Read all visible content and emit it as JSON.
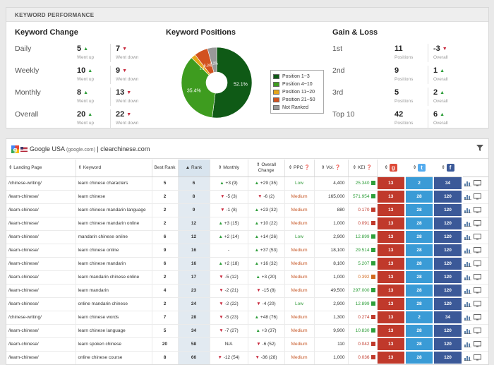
{
  "panel_title": "KEYWORD PERFORMANCE",
  "keyword_change": {
    "title": "Keyword Change",
    "rows": [
      {
        "label": "Daily",
        "up": "5",
        "down": "7",
        "up_sub": "Went up",
        "down_sub": "Went down"
      },
      {
        "label": "Weekly",
        "up": "10",
        "down": "9",
        "up_sub": "Went up",
        "down_sub": "Went down"
      },
      {
        "label": "Monthly",
        "up": "8",
        "down": "13",
        "up_sub": "Went up",
        "down_sub": "Went down"
      },
      {
        "label": "Overall",
        "up": "20",
        "down": "22",
        "up_sub": "Went up",
        "down_sub": "Went down"
      }
    ]
  },
  "keyword_positions": {
    "title": "Keyword Positions",
    "chart_data": {
      "type": "pie",
      "title": "Keyword Positions",
      "slices": [
        {
          "name": "Position 1~3",
          "value": 52.1,
          "label": "52.1%",
          "color": "#0f5a16"
        },
        {
          "name": "Position 4~10",
          "value": 35.4,
          "label": "35.4%",
          "color": "#3e9c1f"
        },
        {
          "name": "Position 11~20",
          "value": 2.1,
          "label": "2.1%",
          "color": "#e6a61a"
        },
        {
          "name": "Position 21~50",
          "value": 6.3,
          "label": "6.3%",
          "color": "#d2521f"
        },
        {
          "name": "Not Ranked",
          "value": 4.2,
          "label": "4.2%",
          "color": "#999999"
        }
      ],
      "legend_position": "right"
    }
  },
  "gain_loss": {
    "title": "Gain & Loss",
    "rows": [
      {
        "label": "1st",
        "positions": "11",
        "overall": "-3",
        "dir": "down",
        "pos_sub": "Positions",
        "ov_sub": "Overall"
      },
      {
        "label": "2nd",
        "positions": "9",
        "overall": "1",
        "dir": "up",
        "pos_sub": "Positions",
        "ov_sub": "Overall"
      },
      {
        "label": "3rd",
        "positions": "5",
        "overall": "2",
        "dir": "up",
        "pos_sub": "Positions",
        "ov_sub": "Overall"
      },
      {
        "label": "Top 10",
        "positions": "42",
        "overall": "6",
        "dir": "up",
        "pos_sub": "Positions",
        "ov_sub": "Overall"
      }
    ]
  },
  "toolbar": {
    "engine": "Google USA",
    "engine_domain": "(google.com)",
    "separator": "|",
    "site": "clearchinese.com"
  },
  "table": {
    "headers": {
      "landing": "Landing Page",
      "keyword": "Keyword",
      "best_rank": "Best Rank",
      "rank": "Rank",
      "monthly": "Monthly",
      "overall": "Overall Change",
      "ppc": "PPC",
      "vol": "Vol.",
      "kei": "KEI"
    },
    "rows": [
      {
        "landing": "/chinese-writing/",
        "keyword": "learn chinese characters",
        "best": "5",
        "rank": "6",
        "m_dir": "up",
        "monthly": "+3 (9)",
        "o_dir": "up",
        "overall": "+29 (35)",
        "ppc": "Low",
        "vol": "4,400",
        "kei": "25.340",
        "kei_c": "#2e9e3a",
        "g": "13",
        "t": "2",
        "f": "34"
      },
      {
        "landing": "/learn-chinese/",
        "keyword": "learn chinese",
        "best": "2",
        "rank": "8",
        "m_dir": "down",
        "monthly": "-5 (3)",
        "o_dir": "down",
        "overall": "-6 (2)",
        "ppc": "Medium",
        "vol": "165,000",
        "kei": "571.954",
        "kei_c": "#2e9e3a",
        "g": "13",
        "t": "28",
        "f": "120"
      },
      {
        "landing": "/learn-chinese/",
        "keyword": "learn chinese mandarin language",
        "best": "2",
        "rank": "9",
        "m_dir": "down",
        "monthly": "-1 (8)",
        "o_dir": "up",
        "overall": "+23 (32)",
        "ppc": "Medium",
        "vol": "880",
        "kei": "0.170",
        "kei_c": "#c0392b",
        "g": "13",
        "t": "28",
        "f": "120"
      },
      {
        "landing": "/learn-chinese/",
        "keyword": "learn chinese mandarin online",
        "best": "2",
        "rank": "12",
        "m_dir": "up",
        "monthly": "+3 (15)",
        "o_dir": "up",
        "overall": "+10 (22)",
        "ppc": "Medium",
        "vol": "1,000",
        "kei": "0.091",
        "kei_c": "#c0392b",
        "g": "13",
        "t": "28",
        "f": "120"
      },
      {
        "landing": "/learn-chinese/",
        "keyword": "mandarin chinese online",
        "best": "6",
        "rank": "12",
        "m_dir": "up",
        "monthly": "+2 (14)",
        "o_dir": "up",
        "overall": "+14 (26)",
        "ppc": "Low",
        "vol": "2,900",
        "kei": "12.899",
        "kei_c": "#2e9e3a",
        "g": "13",
        "t": "28",
        "f": "120"
      },
      {
        "landing": "/learn-chinese/",
        "keyword": "learn chinese online",
        "best": "9",
        "rank": "16",
        "m_dir": "none",
        "monthly": "-",
        "o_dir": "up",
        "overall": "+37 (53)",
        "ppc": "Medium",
        "vol": "18,100",
        "kei": "29.514",
        "kei_c": "#2e9e3a",
        "g": "13",
        "t": "28",
        "f": "120"
      },
      {
        "landing": "/learn-chinese/",
        "keyword": "learn chinese mandarin",
        "best": "6",
        "rank": "16",
        "m_dir": "up",
        "monthly": "+2 (18)",
        "o_dir": "up",
        "overall": "+16 (32)",
        "ppc": "Medium",
        "vol": "8,100",
        "kei": "5.207",
        "kei_c": "#2e9e3a",
        "g": "13",
        "t": "28",
        "f": "120"
      },
      {
        "landing": "/learn-chinese/",
        "keyword": "learn mandarin chinese online",
        "best": "2",
        "rank": "17",
        "m_dir": "down",
        "monthly": "-5 (12)",
        "o_dir": "up",
        "overall": "+3 (20)",
        "ppc": "Medium",
        "vol": "1,000",
        "kei": "0.392",
        "kei_c": "#d2691e",
        "g": "13",
        "t": "28",
        "f": "120"
      },
      {
        "landing": "/learn-chinese/",
        "keyword": "learn mandarin",
        "best": "4",
        "rank": "23",
        "m_dir": "down",
        "monthly": "-2 (21)",
        "o_dir": "down",
        "overall": "-15 (8)",
        "ppc": "Medium",
        "vol": "49,500",
        "kei": "297.000",
        "kei_c": "#2e9e3a",
        "g": "13",
        "t": "28",
        "f": "120"
      },
      {
        "landing": "/learn-chinese/",
        "keyword": "online mandarin chinese",
        "best": "2",
        "rank": "24",
        "m_dir": "down",
        "monthly": "-2 (22)",
        "o_dir": "down",
        "overall": "-4 (20)",
        "ppc": "Low",
        "vol": "2,900",
        "kei": "12.899",
        "kei_c": "#2e9e3a",
        "g": "13",
        "t": "28",
        "f": "120"
      },
      {
        "landing": "/chinese-writing/",
        "keyword": "learn chinese words",
        "best": "7",
        "rank": "28",
        "m_dir": "down",
        "monthly": "-5 (23)",
        "o_dir": "up",
        "overall": "+48 (76)",
        "ppc": "Medium",
        "vol": "1,300",
        "kei": "0.274",
        "kei_c": "#c0392b",
        "g": "13",
        "t": "2",
        "f": "34"
      },
      {
        "landing": "/learn-chinese/",
        "keyword": "learn chinese language",
        "best": "5",
        "rank": "34",
        "m_dir": "down",
        "monthly": "-7 (27)",
        "o_dir": "up",
        "overall": "+3 (37)",
        "ppc": "Medium",
        "vol": "9,900",
        "kei": "10.830",
        "kei_c": "#2e9e3a",
        "g": "13",
        "t": "28",
        "f": "120"
      },
      {
        "landing": "/learn-chinese/",
        "keyword": "learn spoken chinese",
        "best": "20",
        "rank": "58",
        "m_dir": "none",
        "monthly": "N/A",
        "o_dir": "down",
        "overall": "-6 (52)",
        "ppc": "Medium",
        "vol": "110",
        "kei": "0.042",
        "kei_c": "#c0392b",
        "g": "13",
        "t": "28",
        "f": "120"
      },
      {
        "landing": "/learn-chinese/",
        "keyword": "online chinese course",
        "best": "8",
        "rank": "66",
        "m_dir": "down",
        "monthly": "-12 (54)",
        "o_dir": "down",
        "overall": "-36 (28)",
        "ppc": "Medium",
        "vol": "1,000",
        "kei": "0.036",
        "kei_c": "#c0392b",
        "g": "13",
        "t": "28",
        "f": "120"
      }
    ]
  }
}
